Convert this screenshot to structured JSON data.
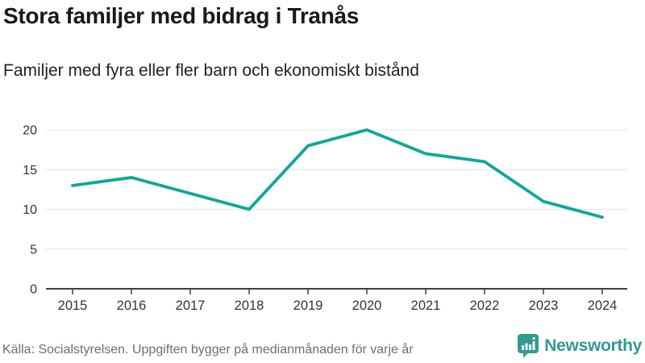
{
  "header": {
    "title": "Stora familjer med bidrag i Tranås",
    "subtitle": "Familjer med fyra eller fler barn och ekonomiskt bistånd"
  },
  "chart_data": {
    "type": "line",
    "title": "Stora familjer med bidrag i Tranås",
    "subtitle": "Familjer med fyra eller fler barn och ekonomiskt bistånd",
    "series_name": "Familjer med fyra eller fler barn och ekonomiskt bistånd",
    "categories": [
      "2015",
      "2016",
      "2017",
      "2018",
      "2019",
      "2020",
      "2021",
      "2022",
      "2023",
      "2024"
    ],
    "values": [
      13,
      14,
      12,
      10,
      18,
      20,
      17,
      16,
      11,
      9
    ],
    "xlabel": "",
    "ylabel": "",
    "ylim": [
      0,
      20
    ],
    "yticks": [
      0,
      5,
      10,
      15,
      20
    ],
    "grid": "horizontal",
    "legend": "none",
    "line_color": "#0ea79a",
    "grid_color": "#e4e4e4",
    "axis_color": "#3f3f3f",
    "tick_label_color": "#333333"
  },
  "footer": {
    "source": "Källa: Socialstyrelsen. Uppgiften bygger på medianmånaden för varje år",
    "brand": "Newsworthy",
    "brand_color": "#2f9b92",
    "logo_icon": "newsworthy-speech-bubble-bar-chart-icon"
  }
}
